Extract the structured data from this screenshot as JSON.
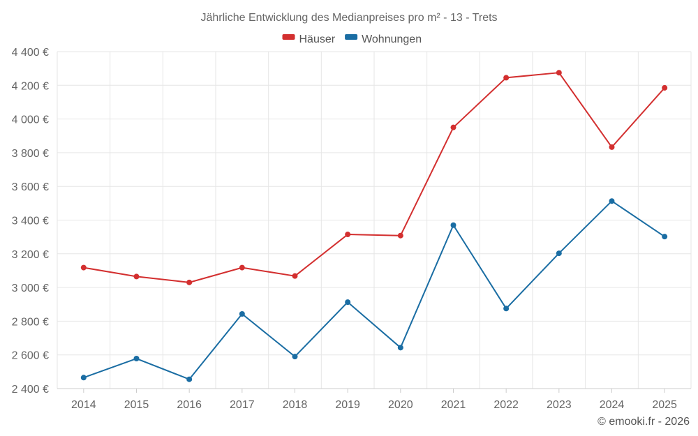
{
  "chart_data": {
    "type": "line",
    "title": "Jährliche Entwicklung des Medianpreises pro m² - 13 - Trets",
    "categories": [
      "2014",
      "2015",
      "2016",
      "2017",
      "2018",
      "2019",
      "2020",
      "2021",
      "2022",
      "2023",
      "2024",
      "2025"
    ],
    "series": [
      {
        "name": "Häuser",
        "color": "#d32f2f",
        "values": [
          3118,
          3065,
          3030,
          3118,
          3068,
          3315,
          3308,
          3950,
          4245,
          4275,
          3833,
          4185
        ]
      },
      {
        "name": "Wohnungen",
        "color": "#1a6da3",
        "values": [
          2465,
          2578,
          2455,
          2843,
          2590,
          2913,
          2643,
          3370,
          2875,
          3203,
          3513,
          3302
        ]
      }
    ],
    "ylim": [
      2400,
      4400
    ],
    "yticks": [
      2400,
      2600,
      2800,
      3000,
      3200,
      3400,
      3600,
      3800,
      4000,
      4200,
      4400
    ],
    "ytick_labels": [
      "2 400 €",
      "2 600 €",
      "2 800 €",
      "3 000 €",
      "3 200 €",
      "3 400 €",
      "3 600 €",
      "3 800 €",
      "4 000 €",
      "4 200 €",
      "4 400 €"
    ],
    "xlabel": "",
    "ylabel": "",
    "legend": "top-center",
    "grid": true
  },
  "credit": "© emooki.fr - 2026"
}
